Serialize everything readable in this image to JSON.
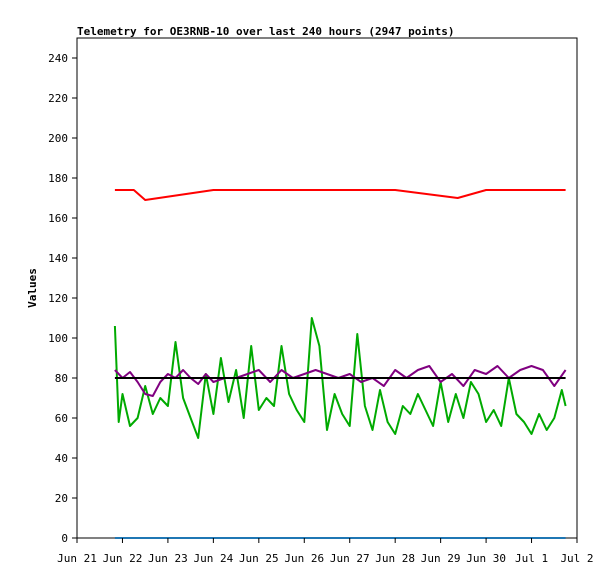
{
  "chart_data": {
    "type": "line",
    "title": "Telemetry for OE3RNB-10 over last 240 hours (2947 points)",
    "xlabel": "",
    "ylabel": "Values",
    "ylim": [
      0,
      250
    ],
    "yticks": [
      0,
      20,
      40,
      60,
      80,
      100,
      120,
      140,
      160,
      180,
      200,
      220,
      240
    ],
    "x_ticks": [
      "Jun 21",
      "Jun 22",
      "Jun 23",
      "Jun 24",
      "Jun 25",
      "Jun 26",
      "Jun 27",
      "Jun 28",
      "Jun 29",
      "Jun 30",
      "Jul 1",
      "Jul 2"
    ],
    "x_range": [
      "Jun 21",
      "Jul 2"
    ],
    "grid": false,
    "legend": "none",
    "series": [
      {
        "color": "#ff0000",
        "x": [
          "Jun 21 20:00",
          "Jun 22 06:00",
          "Jun 22 12:00",
          "Jun 24 00:00",
          "Jun 26 00:00",
          "Jun 28 00:00",
          "Jun 29 09:00",
          "Jun 30 00:00",
          "Jul 1 00:00",
          "Jul 1 18:00"
        ],
        "values": [
          174,
          174,
          169,
          174,
          174,
          174,
          170,
          174,
          174,
          174
        ]
      },
      {
        "color": "#00aa00",
        "x": [
          "Jun 21 20:00",
          "Jun 21 22:00",
          "Jun 22 00:00",
          "Jun 22 04:00",
          "Jun 22 08:00",
          "Jun 22 12:00",
          "Jun 22 16:00",
          "Jun 22 20:00",
          "Jun 23 00:00",
          "Jun 23 04:00",
          "Jun 23 08:00",
          "Jun 23 12:00",
          "Jun 23 16:00",
          "Jun 23 20:00",
          "Jun 24 00:00",
          "Jun 24 04:00",
          "Jun 24 08:00",
          "Jun 24 12:00",
          "Jun 24 16:00",
          "Jun 24 20:00",
          "Jun 25 00:00",
          "Jun 25 04:00",
          "Jun 25 08:00",
          "Jun 25 12:00",
          "Jun 25 16:00",
          "Jun 25 20:00",
          "Jun 26 00:00",
          "Jun 26 04:00",
          "Jun 26 08:00",
          "Jun 26 12:00",
          "Jun 26 16:00",
          "Jun 26 20:00",
          "Jun 27 00:00",
          "Jun 27 04:00",
          "Jun 27 08:00",
          "Jun 27 12:00",
          "Jun 27 16:00",
          "Jun 27 20:00",
          "Jun 28 00:00",
          "Jun 28 04:00",
          "Jun 28 08:00",
          "Jun 28 12:00",
          "Jun 28 16:00",
          "Jun 28 20:00",
          "Jun 29 00:00",
          "Jun 29 04:00",
          "Jun 29 08:00",
          "Jun 29 12:00",
          "Jun 29 16:00",
          "Jun 29 20:00",
          "Jun 30 00:00",
          "Jun 30 04:00",
          "Jun 30 08:00",
          "Jun 30 12:00",
          "Jun 30 16:00",
          "Jun 30 20:00",
          "Jul 1 00:00",
          "Jul 1 04:00",
          "Jul 1 08:00",
          "Jul 1 12:00",
          "Jul 1 16:00",
          "Jul 1 18:00"
        ],
        "values": [
          106,
          58,
          72,
          56,
          60,
          76,
          62,
          70,
          66,
          98,
          70,
          60,
          50,
          82,
          62,
          90,
          68,
          84,
          60,
          96,
          64,
          70,
          66,
          96,
          72,
          64,
          58,
          110,
          96,
          54,
          72,
          62,
          56,
          102,
          66,
          54,
          74,
          58,
          52,
          66,
          62,
          72,
          64,
          56,
          78,
          58,
          72,
          60,
          78,
          72,
          58,
          64,
          56,
          80,
          62,
          58,
          52,
          62,
          54,
          60,
          74,
          66
        ]
      },
      {
        "color": "#800080",
        "x": [
          "Jun 21 20:00",
          "Jun 22 00:00",
          "Jun 22 04:00",
          "Jun 22 08:00",
          "Jun 22 12:00",
          "Jun 22 16:00",
          "Jun 22 20:00",
          "Jun 23 00:00",
          "Jun 23 04:00",
          "Jun 23 08:00",
          "Jun 23 12:00",
          "Jun 23 16:00",
          "Jun 23 20:00",
          "Jun 24 00:00",
          "Jun 24 06:00",
          "Jun 24 12:00",
          "Jun 24 18:00",
          "Jun 25 00:00",
          "Jun 25 06:00",
          "Jun 25 12:00",
          "Jun 25 18:00",
          "Jun 26 00:00",
          "Jun 26 06:00",
          "Jun 26 12:00",
          "Jun 26 18:00",
          "Jun 27 00:00",
          "Jun 27 06:00",
          "Jun 27 12:00",
          "Jun 27 18:00",
          "Jun 28 00:00",
          "Jun 28 06:00",
          "Jun 28 12:00",
          "Jun 28 18:00",
          "Jun 29 00:00",
          "Jun 29 06:00",
          "Jun 29 12:00",
          "Jun 29 18:00",
          "Jun 30 00:00",
          "Jun 30 06:00",
          "Jun 30 12:00",
          "Jun 30 18:00",
          "Jul 1 00:00",
          "Jul 1 06:00",
          "Jul 1 12:00",
          "Jul 1 18:00"
        ],
        "values": [
          84,
          80,
          83,
          78,
          72,
          71,
          78,
          82,
          80,
          84,
          80,
          77,
          82,
          78,
          80,
          80,
          82,
          84,
          78,
          84,
          80,
          82,
          84,
          82,
          80,
          82,
          78,
          80,
          76,
          84,
          80,
          84,
          86,
          78,
          82,
          76,
          84,
          82,
          86,
          80,
          84,
          86,
          84,
          76,
          84
        ]
      },
      {
        "color": "#000000",
        "x": [
          "Jun 21 20:00",
          "Jul 1 18:00"
        ],
        "values": [
          80,
          80
        ]
      },
      {
        "color": "#1f77b4",
        "x": [
          "Jun 21 20:00",
          "Jul 1 18:00"
        ],
        "values": [
          0,
          0
        ]
      }
    ]
  }
}
